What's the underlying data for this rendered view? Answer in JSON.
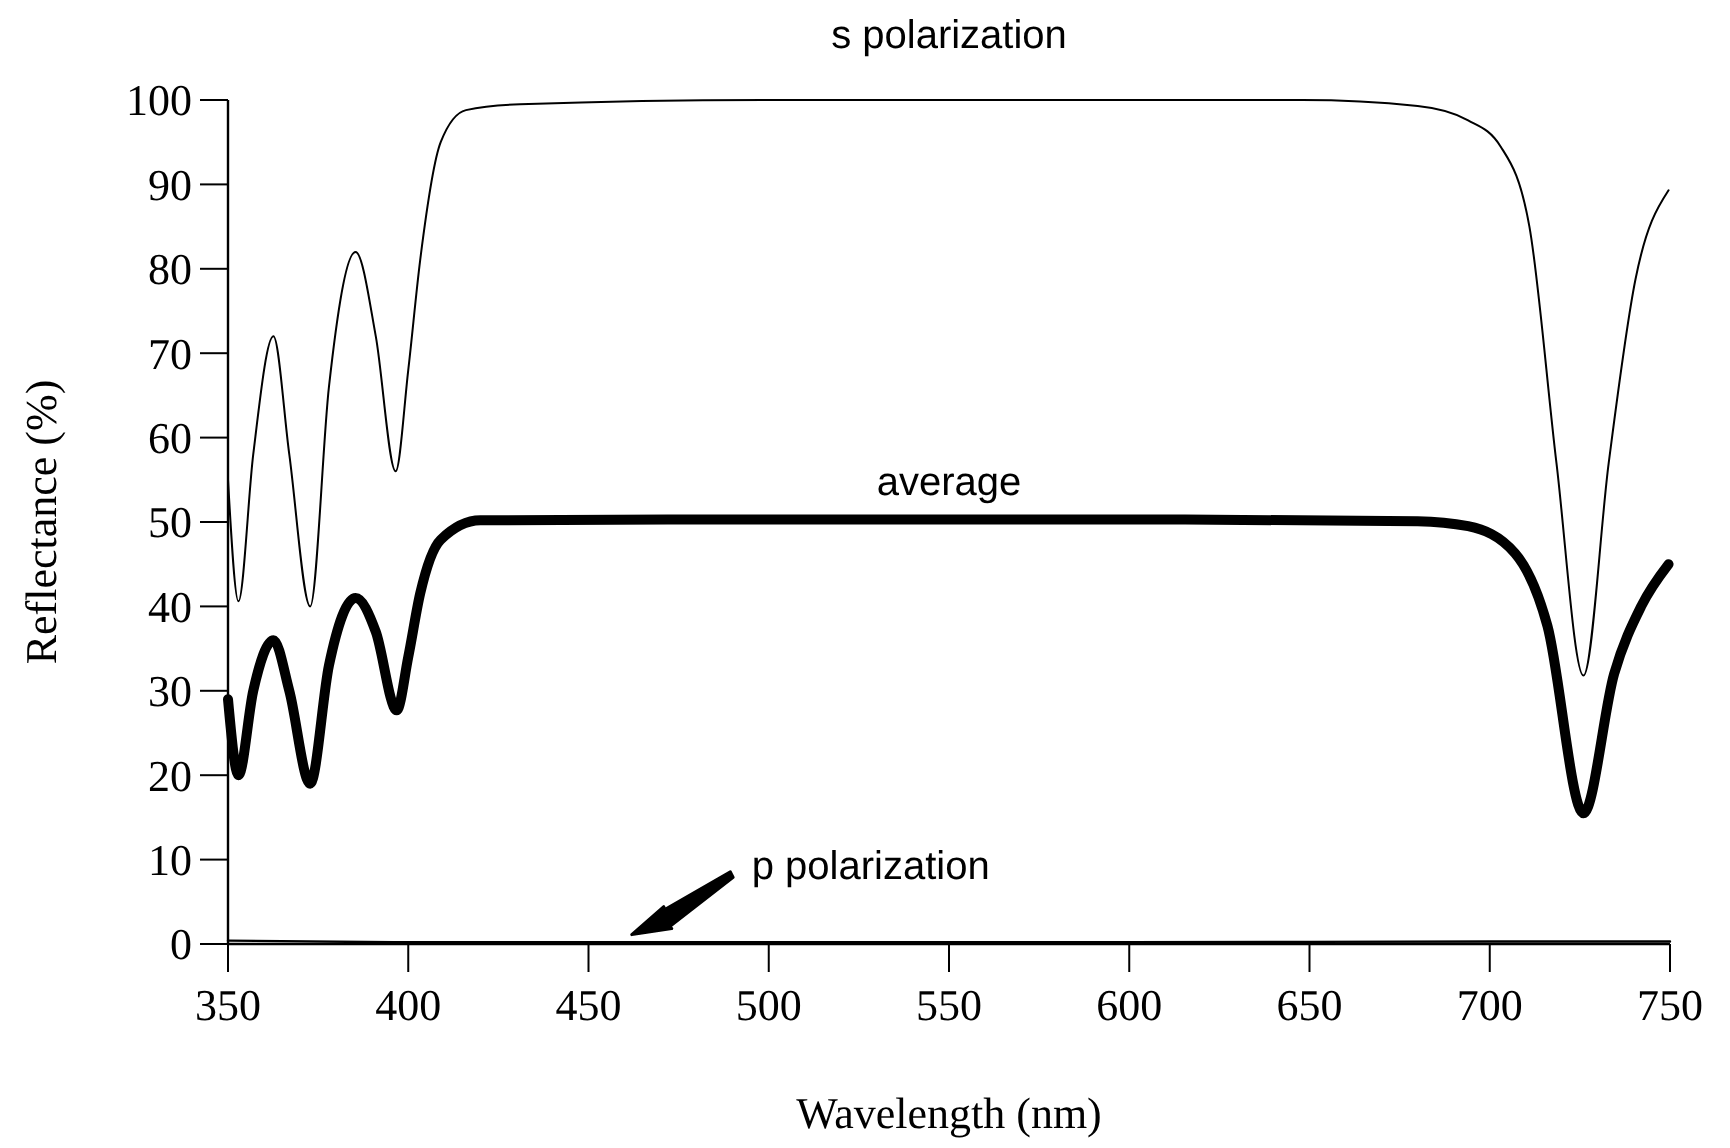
{
  "chart_data": {
    "type": "line",
    "xlabel": "Wavelength (nm)",
    "ylabel": "Reflectance (%)",
    "xlim": [
      350,
      750
    ],
    "ylim": [
      0,
      100
    ],
    "xticks": [
      350,
      400,
      450,
      500,
      550,
      600,
      650,
      700,
      750
    ],
    "yticks": [
      0,
      10,
      20,
      30,
      40,
      50,
      60,
      70,
      80,
      90,
      100
    ],
    "grid": false,
    "legend": false,
    "marker": "none",
    "line_style": "solid",
    "series": [
      {
        "name": "s polarization",
        "color": "#000000",
        "x": [
          350,
          352.9,
          357,
          362.6,
          367,
          372.8,
          378,
          385.4,
          391,
          396.5,
          400,
          403.3,
          409,
          416,
          431,
          500,
          600,
          648,
          680,
          694,
          703,
          711,
          718.5,
          726,
          733,
          740.4,
          749.6
        ],
        "values": [
          55,
          40.6,
          58,
          72,
          58,
          40,
          66,
          82,
          72,
          56,
          68,
          81,
          95,
          98.8,
          99.5,
          100,
          100,
          100,
          99.3,
          97.6,
          94.5,
          85,
          57,
          31.8,
          57,
          78.7,
          89.3
        ]
      },
      {
        "name": "average",
        "color": "#000000",
        "x": [
          350,
          352.9,
          357,
          362.6,
          367,
          372.8,
          378,
          385.4,
          391,
          396.8,
          400,
          403.3,
          409,
          420,
          500,
          600,
          680,
          694,
          707,
          716,
          726,
          734.5,
          742,
          749.6
        ],
        "values": [
          29,
          20,
          30,
          36,
          30,
          19,
          33,
          41,
          37,
          27.7,
          34,
          41.5,
          47.9,
          50.2,
          50.3,
          50.3,
          50.1,
          49.5,
          46.3,
          37.7,
          15.5,
          32,
          40,
          45
        ]
      },
      {
        "name": "p polarization",
        "color": "#000000",
        "x": [
          350,
          400,
          500,
          600,
          700,
          750
        ],
        "values": [
          0.4,
          0.2,
          0.2,
          0.2,
          0.3,
          0.3
        ]
      }
    ]
  }
}
